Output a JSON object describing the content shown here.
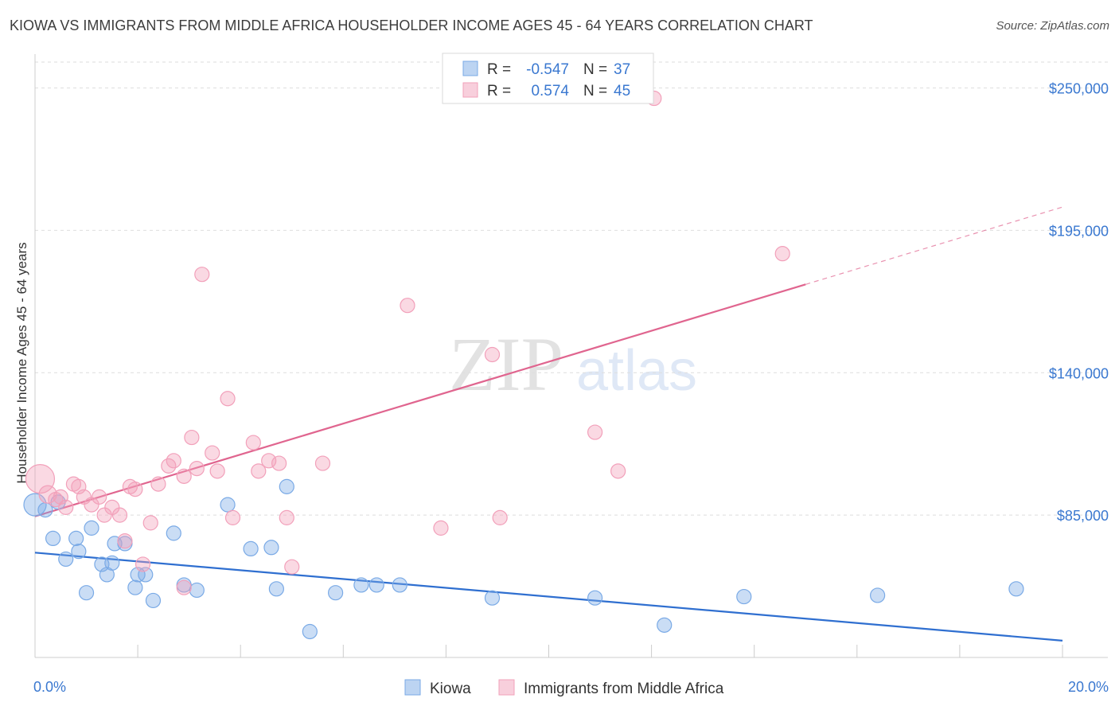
{
  "title": "KIOWA VS IMMIGRANTS FROM MIDDLE AFRICA HOUSEHOLDER INCOME AGES 45 - 64 YEARS CORRELATION CHART",
  "source": "Source: ZipAtlas.com",
  "watermark": {
    "zip": "ZIP",
    "atlas": "atlas"
  },
  "chart_data": {
    "type": "scatter",
    "xlabel": "",
    "ylabel": "Householder Income Ages 45 - 64 years",
    "xlim": [
      0,
      20
    ],
    "ylim": [
      30000,
      260000
    ],
    "x_tick_labels": [
      {
        "value": 0,
        "label": "0.0%"
      },
      {
        "value": 20,
        "label": "20.0%"
      }
    ],
    "y_tick_labels": [
      {
        "value": 85000,
        "label": "$85,000"
      },
      {
        "value": 140000,
        "label": "$140,000"
      },
      {
        "value": 195000,
        "label": "$195,000"
      },
      {
        "value": 250000,
        "label": "$250,000"
      }
    ],
    "grid": true,
    "legend_position": "bottom-center",
    "series": [
      {
        "name": "Kiowa",
        "color": "#7aaae6",
        "line_color": "#2f6fd0",
        "R": "-0.547",
        "N": "37",
        "trend": {
          "x0": 0,
          "y0": 70500,
          "x1": 20,
          "y1": 36500,
          "solid_until": 20
        },
        "points": [
          [
            0.0,
            89000,
            14
          ],
          [
            0.2,
            87000,
            9
          ],
          [
            0.45,
            90000,
            9
          ],
          [
            0.35,
            76000,
            9
          ],
          [
            0.8,
            76000,
            9
          ],
          [
            1.1,
            80000,
            9
          ],
          [
            0.6,
            68000,
            9
          ],
          [
            0.85,
            71000,
            9
          ],
          [
            1.3,
            66000,
            9
          ],
          [
            1.5,
            66500,
            9
          ],
          [
            1.55,
            74000,
            9
          ],
          [
            1.75,
            74000,
            9
          ],
          [
            1.0,
            55000,
            9
          ],
          [
            1.4,
            62000,
            9
          ],
          [
            2.0,
            62000,
            9
          ],
          [
            2.15,
            62000,
            9
          ],
          [
            1.95,
            57000,
            9
          ],
          [
            2.3,
            52000,
            9
          ],
          [
            2.7,
            78000,
            9
          ],
          [
            2.9,
            58000,
            9
          ],
          [
            3.15,
            56000,
            9
          ],
          [
            3.75,
            89000,
            9
          ],
          [
            4.2,
            72000,
            9
          ],
          [
            4.6,
            72500,
            9
          ],
          [
            4.7,
            56500,
            9
          ],
          [
            4.9,
            96000,
            9
          ],
          [
            5.35,
            40000,
            9
          ],
          [
            5.85,
            55000,
            9
          ],
          [
            6.35,
            58000,
            9
          ],
          [
            6.65,
            58000,
            9
          ],
          [
            7.1,
            58000,
            9
          ],
          [
            8.9,
            53000,
            9
          ],
          [
            10.9,
            53000,
            9
          ],
          [
            12.25,
            42500,
            9
          ],
          [
            13.8,
            53500,
            9
          ],
          [
            16.4,
            54000,
            9
          ],
          [
            19.1,
            56500,
            9
          ]
        ]
      },
      {
        "name": "Immigrants from Middle Africa",
        "color": "#f2a0ba",
        "line_color": "#e0658f",
        "R": "0.574",
        "N": "45",
        "trend": {
          "x0": 0,
          "y0": 84500,
          "x1": 20,
          "y1": 204000,
          "solid_until": 15
        },
        "points": [
          [
            0.1,
            99000,
            18
          ],
          [
            0.25,
            93000,
            11
          ],
          [
            0.4,
            91000,
            9
          ],
          [
            0.5,
            92000,
            9
          ],
          [
            0.6,
            88000,
            9
          ],
          [
            0.75,
            97000,
            9
          ],
          [
            0.85,
            96000,
            9
          ],
          [
            0.95,
            92000,
            9
          ],
          [
            1.1,
            89000,
            9
          ],
          [
            1.25,
            92000,
            9
          ],
          [
            1.35,
            85000,
            9
          ],
          [
            1.5,
            88000,
            9
          ],
          [
            1.65,
            85000,
            9
          ],
          [
            1.75,
            75000,
            9
          ],
          [
            1.85,
            96000,
            9
          ],
          [
            1.95,
            95000,
            9
          ],
          [
            2.1,
            66000,
            9
          ],
          [
            2.25,
            82000,
            9
          ],
          [
            2.4,
            97000,
            9
          ],
          [
            2.6,
            104000,
            9
          ],
          [
            2.7,
            106000,
            9
          ],
          [
            2.9,
            100000,
            9
          ],
          [
            2.9,
            57000,
            9
          ],
          [
            3.05,
            115000,
            9
          ],
          [
            3.15,
            103000,
            9
          ],
          [
            3.25,
            178000,
            9
          ],
          [
            3.45,
            109000,
            9
          ],
          [
            3.55,
            102000,
            9
          ],
          [
            3.75,
            130000,
            9
          ],
          [
            3.85,
            84000,
            9
          ],
          [
            4.25,
            113000,
            9
          ],
          [
            4.35,
            102000,
            9
          ],
          [
            4.55,
            106000,
            9
          ],
          [
            4.75,
            105000,
            9
          ],
          [
            4.9,
            84000,
            9
          ],
          [
            5.0,
            65000,
            9
          ],
          [
            5.6,
            105000,
            9
          ],
          [
            7.25,
            166000,
            9
          ],
          [
            7.9,
            80000,
            9
          ],
          [
            8.9,
            147000,
            9
          ],
          [
            9.05,
            84000,
            9
          ],
          [
            10.9,
            117000,
            9
          ],
          [
            11.35,
            102000,
            9
          ],
          [
            12.05,
            246000,
            9
          ],
          [
            14.55,
            186000,
            9
          ]
        ]
      }
    ]
  }
}
